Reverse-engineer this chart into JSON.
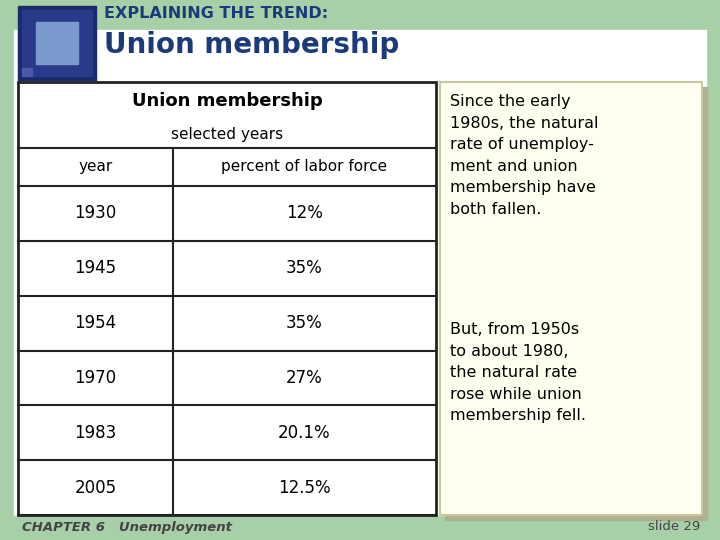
{
  "title_line1": "EXPLAINING THE TREND:",
  "title_line2": "Union membership",
  "table_title": "Union membership",
  "table_subtitle": "selected years",
  "col_headers": [
    "year",
    "percent of labor force"
  ],
  "rows": [
    [
      "1930",
      "12%"
    ],
    [
      "1945",
      "35%"
    ],
    [
      "1954",
      "35%"
    ],
    [
      "1970",
      "27%"
    ],
    [
      "1983",
      "20.1%"
    ],
    [
      "2005",
      "12.5%"
    ]
  ],
  "note1": "Since the early\n1980s, the natural\nrate of unemploy-\nment and union\nmembership have\nboth fallen.",
  "note2": "But, from 1950s\nto about 1980,\nthe natural rate\nrose while union\nmembership fell.",
  "footer_left": "CHAPTER 6   Unemployment",
  "footer_right": "slide 29",
  "bg_color": "#ffffff",
  "sidebar_color": "#a8d0a8",
  "title_color1": "#1a3a7a",
  "title_color2": "#1a3a7a",
  "note_bg": "#fffff0",
  "note_border": "#c8c8a0",
  "note_shadow": "#b0b090",
  "table_border_color": "#222222",
  "footer_color": "#444444"
}
